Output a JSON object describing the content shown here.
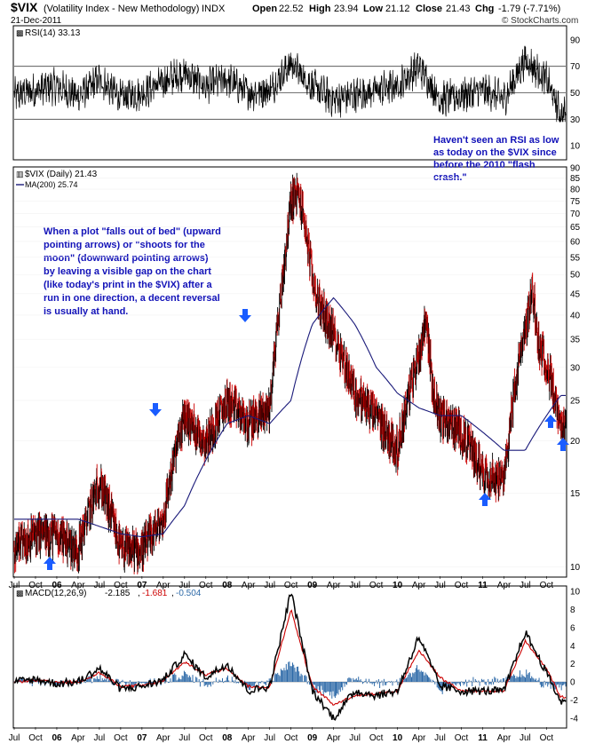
{
  "header": {
    "symbol": "$VIX",
    "name": "(Volatility Index - New Methodology)",
    "exchange": "INDX",
    "date": "21-Dec-2011",
    "quote": {
      "open_label": "Open",
      "open": "22.52",
      "high_label": "High",
      "high": "23.94",
      "low_label": "Low",
      "low": "21.12",
      "close_label": "Close",
      "close": "21.43",
      "chg_label": "Chg",
      "chg": "-1.79 (-7.71%)"
    },
    "watermark": "© StockCharts.com"
  },
  "rsi_panel": {
    "legend": "RSI(14) 33.13",
    "ticks": [
      "90",
      "70",
      "50",
      "30",
      "10"
    ],
    "annotation": [
      "Haven't seen an RSI as low",
      "as today on the $VIX since",
      "before the 2010 \"flash",
      "crash.\""
    ]
  },
  "price_panel": {
    "legend_main": "$VIX (Daily) 21.43",
    "legend_ma": "MA(200) 25.74",
    "ticks": [
      "90",
      "85",
      "80",
      "75",
      "70",
      "65",
      "60",
      "55",
      "50",
      "45",
      "40",
      "35",
      "30",
      "25",
      "20",
      "15",
      "10"
    ],
    "annotation": [
      "When a plot \"falls out of bed\" (upward",
      "pointing arrows) or \"shoots for the",
      "moon\" (downward pointing arrows)",
      "by leaving a visible gap on the chart",
      "(like today's print in the $VIX) after a",
      "run in one direction, a decent reversal",
      "is usually at hand."
    ]
  },
  "macd_panel": {
    "legend_prefix": "MACD(12,26,9)",
    "macd": "-2.185",
    "signal": "-1.681",
    "hist": "-0.504",
    "ticks": [
      "10",
      "8",
      "6",
      "4",
      "2",
      "0",
      "-2",
      "-4"
    ]
  },
  "x_axis_labels": [
    "Jul",
    "Oct",
    "06",
    "Apr",
    "Jul",
    "Oct",
    "07",
    "Apr",
    "Jul",
    "Oct",
    "08",
    "Apr",
    "Jul",
    "Oct",
    "09",
    "Apr",
    "Jul",
    "Oct",
    "10",
    "Apr",
    "Jul",
    "Oct",
    "11",
    "Apr",
    "Jul",
    "Oct"
  ],
  "colors": {
    "price_up": "#000000",
    "price_down": "#cc0000",
    "ma": "#1a1a7a",
    "macd": "#000000",
    "signal": "#cc0000",
    "histogram": "#2e6aa8",
    "annotation": "#1212b8",
    "arrow": "#1a5cff"
  },
  "chart_data": [
    {
      "type": "line",
      "title": "RSI(14)",
      "ylim": [
        0,
        100
      ],
      "reference_lines": [
        70,
        50,
        30
      ],
      "x": [
        "2005-07",
        "2005-10",
        "2006-01",
        "2006-04",
        "2006-07",
        "2006-10",
        "2007-01",
        "2007-04",
        "2007-07",
        "2007-10",
        "2008-01",
        "2008-04",
        "2008-07",
        "2008-10",
        "2009-01",
        "2009-04",
        "2009-07",
        "2009-10",
        "2010-01",
        "2010-04",
        "2010-07",
        "2010-10",
        "2011-01",
        "2011-04",
        "2011-07",
        "2011-10",
        "2011-12"
      ],
      "series": [
        {
          "values": [
            48,
            52,
            55,
            47,
            60,
            46,
            50,
            58,
            65,
            55,
            60,
            50,
            52,
            72,
            55,
            45,
            48,
            52,
            55,
            70,
            45,
            48,
            52,
            45,
            75,
            60,
            33
          ]
        }
      ]
    },
    {
      "type": "line",
      "title": "$VIX (Daily) 21.43",
      "scale": "log",
      "ylim": [
        9.5,
        90
      ],
      "x": [
        "2005-07",
        "2005-10",
        "2006-01",
        "2006-04",
        "2006-07",
        "2006-10",
        "2007-01",
        "2007-04",
        "2007-07",
        "2007-10",
        "2008-01",
        "2008-04",
        "2008-07",
        "2008-10",
        "2009-01",
        "2009-04",
        "2009-07",
        "2009-10",
        "2010-01",
        "2010-04",
        "2010-07",
        "2010-10",
        "2011-01",
        "2011-04",
        "2011-07",
        "2011-10",
        "2011-12"
      ],
      "series": [
        {
          "name": "$VIX (Daily) 21.43",
          "values": [
            11,
            12,
            12,
            11,
            16,
            11,
            11,
            13,
            23,
            20,
            25,
            22,
            24,
            60,
            45,
            36,
            26,
            23,
            19,
            32,
            23,
            21,
            17,
            16,
            37,
            31,
            21
          ]
        },
        {
          "name": "MA(200) 25.74",
          "values": [
            13,
            13,
            13,
            13,
            12.5,
            12,
            11.8,
            12,
            14,
            18,
            22,
            23,
            22,
            25,
            38,
            44,
            38,
            30,
            26,
            24,
            23,
            23,
            21,
            19,
            19,
            23,
            25.7
          ]
        }
      ]
    },
    {
      "type": "line",
      "title": "MACD(12,26,9)",
      "ylim": [
        -5,
        10.5
      ],
      "x": [
        "2005-07",
        "2005-10",
        "2006-01",
        "2006-04",
        "2006-07",
        "2006-10",
        "2007-01",
        "2007-04",
        "2007-07",
        "2007-10",
        "2008-01",
        "2008-04",
        "2008-07",
        "2008-10",
        "2009-01",
        "2009-04",
        "2009-07",
        "2009-10",
        "2010-01",
        "2010-04",
        "2010-07",
        "2010-10",
        "2011-01",
        "2011-04",
        "2011-07",
        "2011-10",
        "2011-12"
      ],
      "series": [
        {
          "name": "MACD",
          "values": [
            0,
            0.3,
            -0.2,
            0,
            1.5,
            -0.8,
            -0.5,
            0.2,
            3,
            0.5,
            2,
            -1,
            -0.5,
            10,
            -1,
            -4,
            -1,
            -1.5,
            -1,
            5,
            -0.5,
            -1,
            -1,
            -1,
            5.5,
            1,
            -2.185
          ]
        },
        {
          "name": "Signal",
          "values": [
            0,
            0.2,
            -0.1,
            0,
            1,
            -0.5,
            -0.4,
            0.1,
            2.2,
            0.8,
            1.5,
            -0.5,
            -0.6,
            8,
            -0.5,
            -2.5,
            -1.5,
            -1.3,
            -1,
            3.5,
            0.5,
            -1,
            -1,
            -1,
            4.5,
            1.5,
            -1.681
          ]
        }
      ]
    }
  ]
}
